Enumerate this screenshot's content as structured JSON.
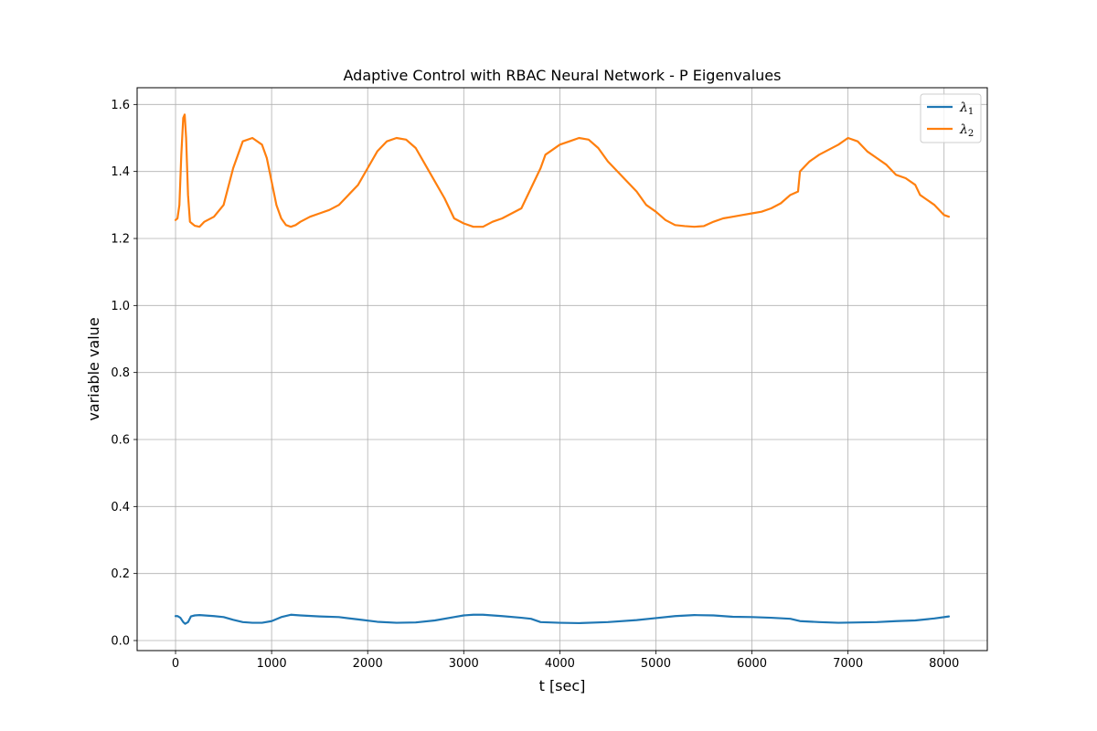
{
  "chart_data": {
    "type": "line",
    "title": "Adaptive Control with RBAC Neural Network - P Eigenvalues",
    "xlabel": "t [sec]",
    "ylabel": "variable value",
    "xlim": [
      -400,
      8450
    ],
    "ylim": [
      -0.03,
      1.65
    ],
    "xticks": [
      0,
      1000,
      2000,
      3000,
      4000,
      5000,
      6000,
      7000,
      8000
    ],
    "xtick_labels": [
      "0",
      "1000",
      "2000",
      "3000",
      "4000",
      "5000",
      "6000",
      "7000",
      "8000"
    ],
    "yticks": [
      0.0,
      0.2,
      0.4,
      0.6,
      0.8,
      1.0,
      1.2,
      1.4,
      1.6
    ],
    "ytick_labels": [
      "0.0",
      "0.2",
      "0.4",
      "0.6",
      "0.8",
      "1.0",
      "1.2",
      "1.4",
      "1.6"
    ],
    "grid": true,
    "legend_position": "top-right",
    "series": [
      {
        "name": "λ1",
        "legend_symbol": "λ",
        "legend_subscript": "1",
        "color": "#1f77b4",
        "x": [
          0,
          20,
          50,
          80,
          100,
          130,
          160,
          200,
          250,
          300,
          400,
          500,
          600,
          700,
          800,
          900,
          1000,
          1100,
          1200,
          1300,
          1500,
          1700,
          1900,
          2100,
          2300,
          2500,
          2700,
          2900,
          3000,
          3100,
          3200,
          3400,
          3600,
          3700,
          3800,
          4000,
          4200,
          4500,
          4800,
          5000,
          5200,
          5400,
          5600,
          5800,
          6000,
          6200,
          6400,
          6500,
          6700,
          6900,
          7100,
          7300,
          7500,
          7700,
          7900,
          8050
        ],
        "values": [
          0.073,
          0.073,
          0.068,
          0.055,
          0.05,
          0.055,
          0.072,
          0.075,
          0.076,
          0.075,
          0.073,
          0.07,
          0.062,
          0.055,
          0.053,
          0.053,
          0.058,
          0.07,
          0.077,
          0.075,
          0.072,
          0.07,
          0.063,
          0.056,
          0.053,
          0.054,
          0.06,
          0.07,
          0.075,
          0.077,
          0.077,
          0.073,
          0.068,
          0.065,
          0.055,
          0.053,
          0.052,
          0.055,
          0.061,
          0.067,
          0.073,
          0.076,
          0.075,
          0.071,
          0.07,
          0.068,
          0.065,
          0.058,
          0.055,
          0.053,
          0.054,
          0.055,
          0.058,
          0.06,
          0.066,
          0.072
        ]
      },
      {
        "name": "λ2",
        "legend_symbol": "λ",
        "legend_subscript": "2",
        "color": "#ff7f0e",
        "x": [
          0,
          20,
          40,
          60,
          80,
          95,
          110,
          130,
          150,
          170,
          200,
          250,
          300,
          400,
          500,
          600,
          700,
          800,
          900,
          950,
          1000,
          1050,
          1100,
          1150,
          1200,
          1250,
          1300,
          1400,
          1500,
          1600,
          1700,
          1800,
          1900,
          2000,
          2100,
          2200,
          2300,
          2400,
          2500,
          2600,
          2700,
          2800,
          2900,
          3000,
          3100,
          3200,
          3300,
          3400,
          3500,
          3600,
          3700,
          3800,
          3850,
          3900,
          4000,
          4100,
          4200,
          4300,
          4400,
          4500,
          4600,
          4700,
          4800,
          4900,
          5000,
          5100,
          5200,
          5300,
          5400,
          5500,
          5600,
          5700,
          5800,
          5900,
          6000,
          6100,
          6200,
          6300,
          6400,
          6480,
          6500,
          6600,
          6700,
          6800,
          6900,
          7000,
          7100,
          7200,
          7300,
          7400,
          7500,
          7600,
          7700,
          7750,
          7800,
          7900,
          8000,
          8050
        ],
        "values": [
          1.255,
          1.26,
          1.3,
          1.45,
          1.56,
          1.57,
          1.5,
          1.33,
          1.25,
          1.245,
          1.238,
          1.235,
          1.25,
          1.265,
          1.3,
          1.41,
          1.49,
          1.5,
          1.48,
          1.44,
          1.37,
          1.3,
          1.26,
          1.24,
          1.235,
          1.24,
          1.25,
          1.265,
          1.275,
          1.285,
          1.3,
          1.33,
          1.36,
          1.41,
          1.46,
          1.49,
          1.5,
          1.495,
          1.47,
          1.42,
          1.37,
          1.32,
          1.26,
          1.245,
          1.235,
          1.235,
          1.25,
          1.26,
          1.275,
          1.29,
          1.35,
          1.41,
          1.45,
          1.46,
          1.48,
          1.49,
          1.5,
          1.495,
          1.47,
          1.43,
          1.4,
          1.37,
          1.34,
          1.3,
          1.28,
          1.255,
          1.24,
          1.237,
          1.235,
          1.237,
          1.25,
          1.26,
          1.265,
          1.27,
          1.275,
          1.28,
          1.29,
          1.305,
          1.33,
          1.34,
          1.4,
          1.43,
          1.45,
          1.465,
          1.48,
          1.5,
          1.49,
          1.46,
          1.44,
          1.42,
          1.39,
          1.38,
          1.36,
          1.33,
          1.32,
          1.3,
          1.27,
          1.265
        ]
      }
    ]
  }
}
